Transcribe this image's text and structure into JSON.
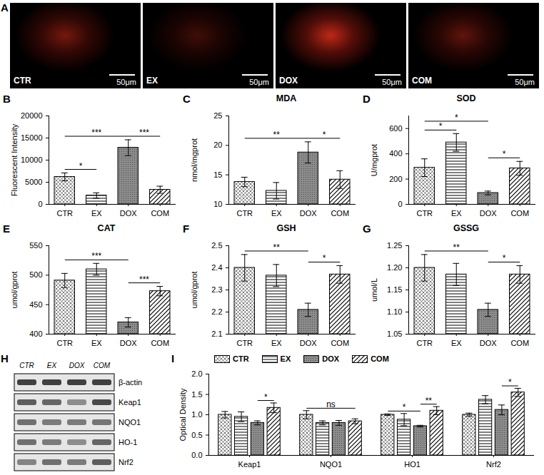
{
  "panel_A": {
    "letter": "A",
    "images": [
      {
        "label": "CTR",
        "scale_bar": "50μm"
      },
      {
        "label": "EX",
        "scale_bar": "50μm"
      },
      {
        "label": "DOX",
        "scale_bar": "50μm"
      },
      {
        "label": "COM",
        "scale_bar": "50μm"
      }
    ]
  },
  "chart_data": [
    {
      "letter": "B",
      "type": "bar",
      "y_label": "Fluorescent Intensity",
      "categories": [
        "CTR",
        "EX",
        "DOX",
        "COM"
      ],
      "values": [
        6200,
        2000,
        12800,
        3300
      ],
      "errors": [
        900,
        600,
        1800,
        800
      ],
      "ylim": [
        0,
        20000
      ],
      "yticks": [
        0,
        5000,
        10000,
        15000,
        20000
      ],
      "grid": false,
      "significance": [
        {
          "from": "CTR",
          "to": "EX",
          "label": "*"
        },
        {
          "from": "CTR",
          "to": "DOX",
          "label": "***"
        },
        {
          "from": "DOX",
          "to": "COM",
          "label": "***"
        }
      ]
    },
    {
      "letter": "C",
      "type": "bar",
      "title": "MDA",
      "y_label": "nmol/mgprot",
      "categories": [
        "CTR",
        "EX",
        "DOX",
        "COM"
      ],
      "values": [
        13.8,
        12.3,
        18.8,
        14.2
      ],
      "errors": [
        0.8,
        1.4,
        1.8,
        1.5
      ],
      "ylim": [
        10,
        25
      ],
      "yticks": [
        10,
        15,
        20,
        25
      ],
      "grid": false,
      "significance": [
        {
          "from": "CTR",
          "to": "DOX",
          "label": "**"
        },
        {
          "from": "DOX",
          "to": "COM",
          "label": "*"
        }
      ]
    },
    {
      "letter": "D",
      "type": "bar",
      "title": "SOD",
      "y_label": "U/mgprot",
      "categories": [
        "CTR",
        "EX",
        "DOX",
        "COM"
      ],
      "values": [
        290,
        490,
        90,
        285
      ],
      "errors": [
        70,
        70,
        15,
        55
      ],
      "ylim": [
        0,
        700
      ],
      "yticks": [
        0,
        200,
        400,
        600
      ],
      "grid": false,
      "significance": [
        {
          "from": "CTR",
          "to": "EX",
          "label": "*"
        },
        {
          "from": "CTR",
          "to": "DOX",
          "label": "*"
        },
        {
          "from": "DOX",
          "to": "COM",
          "label": "*"
        }
      ]
    },
    {
      "letter": "E",
      "type": "bar",
      "title": "CAT",
      "y_label": "umol/gprot",
      "categories": [
        "CTR",
        "EX",
        "DOX",
        "COM"
      ],
      "values": [
        491,
        510,
        420,
        473
      ],
      "errors": [
        12,
        10,
        8,
        8
      ],
      "ylim": [
        400,
        550
      ],
      "yticks": [
        400,
        450,
        500,
        550
      ],
      "grid": false,
      "significance": [
        {
          "from": "CTR",
          "to": "DOX",
          "label": "***"
        },
        {
          "from": "DOX",
          "to": "COM",
          "label": "***"
        }
      ]
    },
    {
      "letter": "F",
      "type": "bar",
      "title": "GSH",
      "y_label": "umol/gprot",
      "categories": [
        "CTR",
        "EX",
        "DOX",
        "COM"
      ],
      "values": [
        2.4,
        2.365,
        2.21,
        2.37
      ],
      "errors": [
        0.06,
        0.05,
        0.03,
        0.04
      ],
      "ylim": [
        2.1,
        2.5
      ],
      "yticks": [
        2.1,
        2.2,
        2.3,
        2.4,
        2.5
      ],
      "grid": false,
      "significance": [
        {
          "from": "CTR",
          "to": "DOX",
          "label": "**"
        },
        {
          "from": "DOX",
          "to": "COM",
          "label": "*"
        }
      ]
    },
    {
      "letter": "G",
      "type": "bar",
      "title": "GSSG",
      "y_label": "umol/L",
      "categories": [
        "CTR",
        "EX",
        "DOX",
        "COM"
      ],
      "values": [
        1.2,
        1.185,
        1.105,
        1.185
      ],
      "errors": [
        0.03,
        0.025,
        0.015,
        0.02
      ],
      "ylim": [
        1.05,
        1.25
      ],
      "yticks": [
        1.05,
        {
          "value": 1.1,
          "label": "1.10"
        },
        1.15,
        {
          "value": 1.2,
          "label": "1.20"
        },
        1.25
      ],
      "grid": false,
      "significance": [
        {
          "from": "CTR",
          "to": "DOX",
          "label": "**"
        },
        {
          "from": "DOX",
          "to": "COM",
          "label": "*"
        }
      ]
    },
    {
      "letter": "I",
      "type": "bar",
      "y_label": "Optical Density",
      "categories": [
        "Keap1",
        "NQO1",
        "HO1",
        "Nrf2"
      ],
      "series": [
        {
          "name": "CTR",
          "values": [
            1.0,
            1.0,
            1.0,
            1.0
          ],
          "errors": [
            0.08,
            0.1,
            0.02,
            0.04
          ]
        },
        {
          "name": "EX",
          "values": [
            0.95,
            0.8,
            0.88,
            1.37
          ],
          "errors": [
            0.12,
            0.05,
            0.15,
            0.1
          ]
        },
        {
          "name": "DOX",
          "values": [
            0.8,
            0.8,
            0.72,
            1.12
          ],
          "errors": [
            0.05,
            0.06,
            0.02,
            0.12
          ]
        },
        {
          "name": "COM",
          "values": [
            1.17,
            0.84,
            1.1,
            1.55
          ],
          "errors": [
            0.12,
            0.06,
            0.1,
            0.1
          ]
        }
      ],
      "ylim": [
        0,
        2
      ],
      "yticks": [
        {
          "value": 0,
          "label": "0.0"
        },
        0.5,
        {
          "value": 1,
          "label": "1.0"
        },
        1.5,
        {
          "value": 2,
          "label": "2.0"
        }
      ],
      "grid": false,
      "legend": "top",
      "significance": [
        {
          "category": "Keap1",
          "from": "DOX",
          "to": "COM",
          "label": "*"
        },
        {
          "category": "NQO1",
          "from": "CTR",
          "to": "COM",
          "label": "ns"
        },
        {
          "category": "HO1",
          "from": "CTR",
          "to": "DOX",
          "label": "*"
        },
        {
          "category": "HO1",
          "from": "DOX",
          "to": "COM",
          "label": "**"
        },
        {
          "category": "Nrf2",
          "from": "DOX",
          "to": "COM",
          "label": "*"
        }
      ]
    }
  ],
  "panel_H": {
    "letter": "H",
    "lanes": [
      "CTR",
      "EX",
      "DOX",
      "COM"
    ],
    "bands": [
      "β-actin",
      "Keap1",
      "NQO1",
      "HO-1",
      "Nrf2"
    ]
  }
}
